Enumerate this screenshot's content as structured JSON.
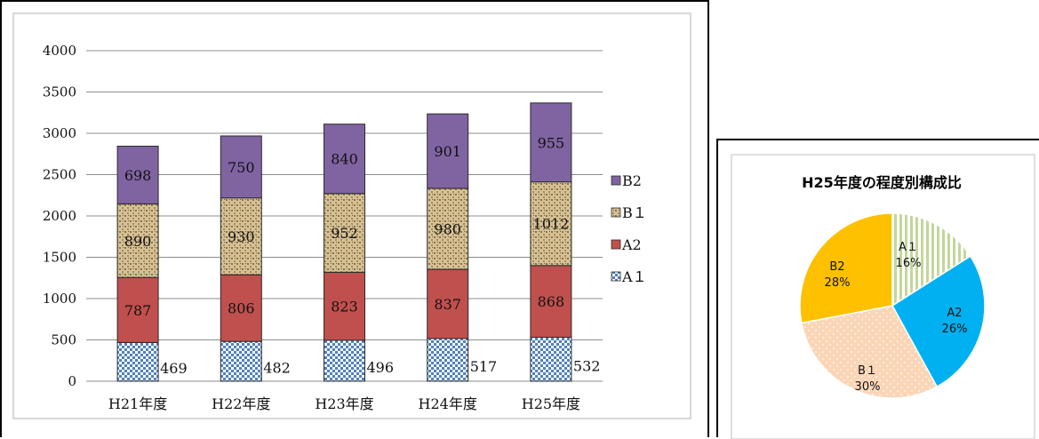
{
  "chart_data": [
    {
      "type": "bar",
      "stacked": true,
      "categories": [
        "H21年度",
        "H22年度",
        "H23年度",
        "H24年度",
        "H25年度"
      ],
      "series": [
        {
          "name": "A１",
          "values": [
            469,
            482,
            496,
            517,
            532
          ],
          "color": "#4f81bd"
        },
        {
          "name": "A2",
          "values": [
            787,
            806,
            823,
            837,
            868
          ],
          "color": "#c0504d"
        },
        {
          "name": "B１",
          "values": [
            890,
            930,
            952,
            980,
            1012
          ],
          "color": "#c9b48a"
        },
        {
          "name": "B2",
          "values": [
            698,
            750,
            840,
            901,
            955
          ],
          "color": "#8064a2"
        }
      ],
      "ylim": [
        0,
        4000
      ],
      "yticks": [
        "0",
        "500",
        "1000",
        "1500",
        "2000",
        "2500",
        "3000",
        "3500",
        "4000"
      ],
      "data_labels": {
        "A１": [
          "469",
          "482",
          "496",
          "517",
          "532"
        ],
        "A2": [
          "787",
          "806",
          "823",
          "837",
          "868"
        ],
        "B１": [
          "890",
          "930",
          "952",
          "980",
          "1012"
        ],
        "B2": [
          "698",
          "750",
          "840",
          "901",
          "955"
        ]
      },
      "legend_order": [
        "B2",
        "B１",
        "A2",
        "A１"
      ],
      "grid": true,
      "legend_position": "right"
    },
    {
      "type": "pie",
      "title": "H25年度の程度別構成比",
      "slices": [
        {
          "name": "A１",
          "value": 16,
          "label": "16%",
          "color": "#d7e4bd"
        },
        {
          "name": "A2",
          "value": 26,
          "label": "26%",
          "color": "#00b0f0"
        },
        {
          "name": "B１",
          "value": 30,
          "label": "30%",
          "color": "#fbd5b5"
        },
        {
          "name": "B2",
          "value": 28,
          "label": "28%",
          "color": "#ffc000"
        }
      ]
    }
  ]
}
